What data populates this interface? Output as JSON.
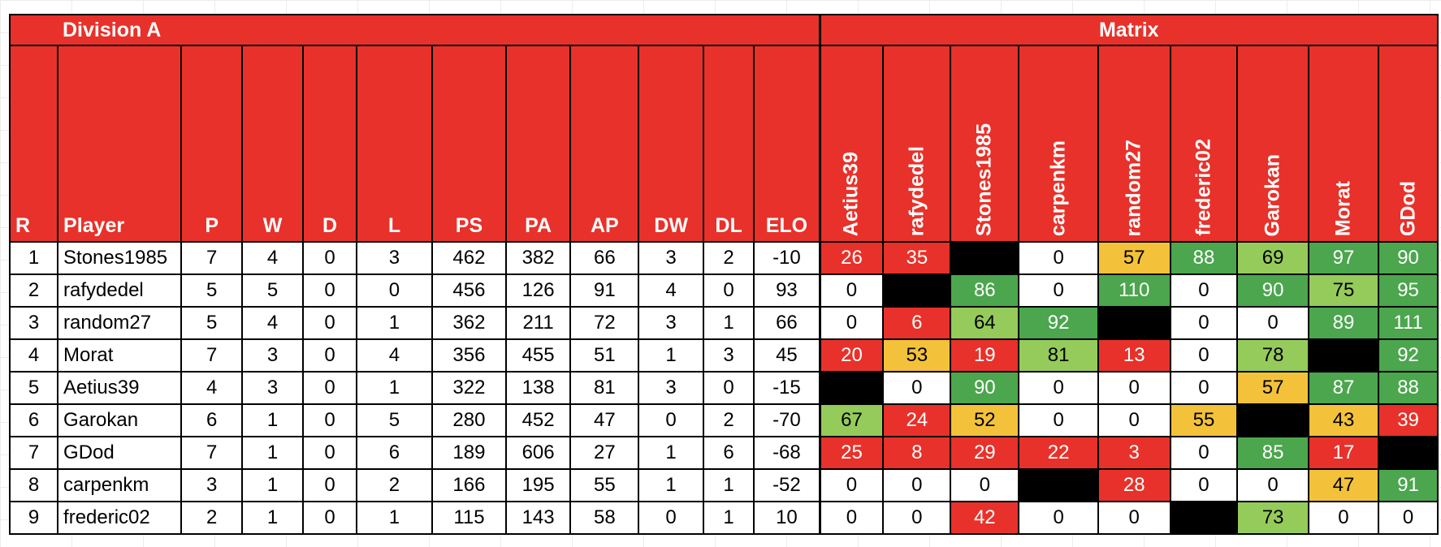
{
  "title_left": "Division A",
  "title_right": "Matrix",
  "columns": [
    "R",
    "Player",
    "P",
    "W",
    "D",
    "L",
    "PS",
    "PA",
    "AP",
    "DW",
    "DL",
    "ELO"
  ],
  "matrix_columns": [
    "Aetius39",
    "rafydedel",
    "Stones1985",
    "carpenkm",
    "random27",
    "frederic02",
    "Garokan",
    "Morat",
    "GDod"
  ],
  "colors": {
    "header_red": "#e8312a",
    "red": "#e8312a",
    "yellow": "#f3c23a",
    "light_green": "#95cb5a",
    "green": "#4ba64d",
    "black": "#000000",
    "white": "#ffffff"
  },
  "rows": [
    {
      "stats": [
        "1",
        "Stones1985",
        "7",
        "4",
        "0",
        "3",
        "462",
        "382",
        "66",
        "3",
        "2",
        "-10"
      ],
      "matrix": [
        [
          "26",
          "red"
        ],
        [
          "35",
          "red"
        ],
        [
          "",
          "black"
        ],
        [
          "0",
          "white"
        ],
        [
          "57",
          "yellow"
        ],
        [
          "88",
          "green"
        ],
        [
          "69",
          "light_green"
        ],
        [
          "97",
          "green"
        ],
        [
          "90",
          "green"
        ]
      ]
    },
    {
      "stats": [
        "2",
        "rafydedel",
        "5",
        "5",
        "0",
        "0",
        "456",
        "126",
        "91",
        "4",
        "0",
        "93"
      ],
      "matrix": [
        [
          "0",
          "white"
        ],
        [
          "",
          "black"
        ],
        [
          "86",
          "green"
        ],
        [
          "0",
          "white"
        ],
        [
          "110",
          "green"
        ],
        [
          "0",
          "white"
        ],
        [
          "90",
          "green"
        ],
        [
          "75",
          "light_green"
        ],
        [
          "95",
          "green"
        ]
      ]
    },
    {
      "stats": [
        "3",
        "random27",
        "5",
        "4",
        "0",
        "1",
        "362",
        "211",
        "72",
        "3",
        "1",
        "66"
      ],
      "matrix": [
        [
          "0",
          "white"
        ],
        [
          "6",
          "red"
        ],
        [
          "64",
          "light_green"
        ],
        [
          "92",
          "green"
        ],
        [
          "",
          "black"
        ],
        [
          "0",
          "white"
        ],
        [
          "0",
          "white"
        ],
        [
          "89",
          "green"
        ],
        [
          "111",
          "green"
        ]
      ]
    },
    {
      "stats": [
        "4",
        "Morat",
        "7",
        "3",
        "0",
        "4",
        "356",
        "455",
        "51",
        "1",
        "3",
        "45"
      ],
      "matrix": [
        [
          "20",
          "red"
        ],
        [
          "53",
          "yellow"
        ],
        [
          "19",
          "red"
        ],
        [
          "81",
          "light_green"
        ],
        [
          "13",
          "red"
        ],
        [
          "0",
          "white"
        ],
        [
          "78",
          "light_green"
        ],
        [
          "",
          "black"
        ],
        [
          "92",
          "green"
        ]
      ]
    },
    {
      "stats": [
        "5",
        "Aetius39",
        "4",
        "3",
        "0",
        "1",
        "322",
        "138",
        "81",
        "3",
        "0",
        "-15"
      ],
      "matrix": [
        [
          "",
          "black"
        ],
        [
          "0",
          "white"
        ],
        [
          "90",
          "green"
        ],
        [
          "0",
          "white"
        ],
        [
          "0",
          "white"
        ],
        [
          "0",
          "white"
        ],
        [
          "57",
          "yellow"
        ],
        [
          "87",
          "green"
        ],
        [
          "88",
          "green"
        ]
      ]
    },
    {
      "stats": [
        "6",
        "Garokan",
        "6",
        "1",
        "0",
        "5",
        "280",
        "452",
        "47",
        "0",
        "2",
        "-70"
      ],
      "matrix": [
        [
          "67",
          "light_green"
        ],
        [
          "24",
          "red"
        ],
        [
          "52",
          "yellow"
        ],
        [
          "0",
          "white"
        ],
        [
          "0",
          "white"
        ],
        [
          "55",
          "yellow"
        ],
        [
          "",
          "black"
        ],
        [
          "43",
          "yellow"
        ],
        [
          "39",
          "red"
        ]
      ]
    },
    {
      "stats": [
        "7",
        "GDod",
        "7",
        "1",
        "0",
        "6",
        "189",
        "606",
        "27",
        "1",
        "6",
        "-68"
      ],
      "matrix": [
        [
          "25",
          "red"
        ],
        [
          "8",
          "red"
        ],
        [
          "29",
          "red"
        ],
        [
          "22",
          "red"
        ],
        [
          "3",
          "red"
        ],
        [
          "0",
          "white"
        ],
        [
          "85",
          "green"
        ],
        [
          "17",
          "red"
        ],
        [
          "",
          "black"
        ]
      ]
    },
    {
      "stats": [
        "8",
        "carpenkm",
        "3",
        "1",
        "0",
        "2",
        "166",
        "195",
        "55",
        "1",
        "1",
        "-52"
      ],
      "matrix": [
        [
          "0",
          "white"
        ],
        [
          "0",
          "white"
        ],
        [
          "0",
          "white"
        ],
        [
          "",
          "black"
        ],
        [
          "28",
          "red"
        ],
        [
          "0",
          "white"
        ],
        [
          "0",
          "white"
        ],
        [
          "47",
          "yellow"
        ],
        [
          "91",
          "green"
        ]
      ]
    },
    {
      "stats": [
        "9",
        "frederic02",
        "2",
        "1",
        "0",
        "1",
        "115",
        "143",
        "58",
        "0",
        "1",
        "10"
      ],
      "matrix": [
        [
          "0",
          "white"
        ],
        [
          "0",
          "white"
        ],
        [
          "42",
          "red"
        ],
        [
          "0",
          "white"
        ],
        [
          "0",
          "white"
        ],
        [
          "",
          "black"
        ],
        [
          "73",
          "light_green"
        ],
        [
          "0",
          "white"
        ],
        [
          "0",
          "white"
        ]
      ]
    }
  ]
}
